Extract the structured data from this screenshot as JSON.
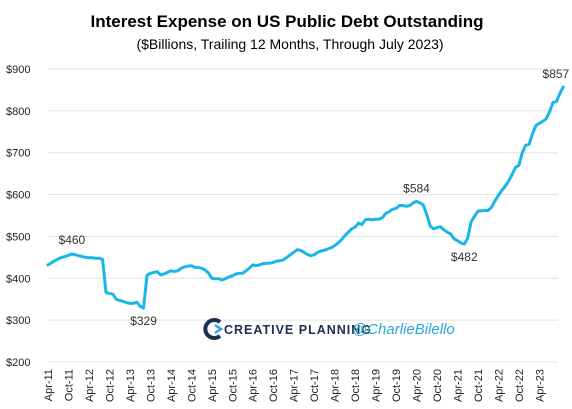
{
  "chart_data": {
    "type": "line",
    "title": "Interest Expense on US Public Debt Outstanding",
    "subtitle": "($Billions, Trailing 12 Months, Through July 2023)",
    "ylim": [
      200,
      900
    ],
    "yticks": [
      200,
      300,
      400,
      500,
      600,
      700,
      800,
      900
    ],
    "ytick_labels": [
      "$200",
      "$300",
      "$400",
      "$500",
      "$600",
      "$700",
      "$800",
      "$900"
    ],
    "xlim": [
      0,
      148
    ],
    "x_ticks": [
      {
        "x": 0,
        "label": "Apr-11"
      },
      {
        "x": 6,
        "label": "Oct-11"
      },
      {
        "x": 12,
        "label": "Apr-12"
      },
      {
        "x": 18,
        "label": "Oct-12"
      },
      {
        "x": 24,
        "label": "Apr-13"
      },
      {
        "x": 30,
        "label": "Oct-13"
      },
      {
        "x": 36,
        "label": "Apr-14"
      },
      {
        "x": 42,
        "label": "Oct-14"
      },
      {
        "x": 48,
        "label": "Apr-15"
      },
      {
        "x": 54,
        "label": "Oct-15"
      },
      {
        "x": 60,
        "label": "Apr-16"
      },
      {
        "x": 66,
        "label": "Oct-16"
      },
      {
        "x": 72,
        "label": "Apr-17"
      },
      {
        "x": 78,
        "label": "Oct-17"
      },
      {
        "x": 84,
        "label": "Apr-18"
      },
      {
        "x": 90,
        "label": "Oct-18"
      },
      {
        "x": 96,
        "label": "Apr-19"
      },
      {
        "x": 102,
        "label": "Oct-19"
      },
      {
        "x": 108,
        "label": "Apr-20"
      },
      {
        "x": 114,
        "label": "Oct-20"
      },
      {
        "x": 120,
        "label": "Apr-21"
      },
      {
        "x": 126,
        "label": "Oct-21"
      },
      {
        "x": 132,
        "label": "Apr-22"
      },
      {
        "x": 138,
        "label": "Oct-22"
      },
      {
        "x": 144,
        "label": "Apr-23"
      }
    ],
    "series": [
      {
        "color": "#1ab6ea",
        "points": [
          [
            0,
            432
          ],
          [
            1,
            437
          ],
          [
            2,
            442
          ],
          [
            3,
            446
          ],
          [
            4,
            450
          ],
          [
            5,
            452
          ],
          [
            6,
            455
          ],
          [
            7,
            458
          ],
          [
            8,
            456
          ],
          [
            9,
            454
          ],
          [
            10,
            452
          ],
          [
            11,
            450
          ],
          [
            12,
            449
          ],
          [
            13,
            449
          ],
          [
            14,
            448
          ],
          [
            15,
            448
          ],
          [
            16,
            445
          ],
          [
            17,
            366
          ],
          [
            18,
            364
          ],
          [
            19,
            362
          ],
          [
            20,
            350
          ],
          [
            21,
            347
          ],
          [
            22,
            345
          ],
          [
            23,
            342
          ],
          [
            24,
            340
          ],
          [
            25,
            340
          ],
          [
            26,
            343
          ],
          [
            27,
            333
          ],
          [
            28,
            329
          ],
          [
            29,
            407
          ],
          [
            30,
            412
          ],
          [
            31,
            414
          ],
          [
            32,
            416
          ],
          [
            33,
            408
          ],
          [
            34,
            410
          ],
          [
            35,
            414
          ],
          [
            36,
            418
          ],
          [
            37,
            416
          ],
          [
            38,
            418
          ],
          [
            39,
            424
          ],
          [
            40,
            427
          ],
          [
            41,
            429
          ],
          [
            42,
            430
          ],
          [
            43,
            426
          ],
          [
            44,
            426
          ],
          [
            45,
            424
          ],
          [
            46,
            420
          ],
          [
            47,
            413
          ],
          [
            48,
            400
          ],
          [
            49,
            399
          ],
          [
            50,
            399
          ],
          [
            51,
            396
          ],
          [
            52,
            399
          ],
          [
            53,
            403
          ],
          [
            54,
            406
          ],
          [
            55,
            410
          ],
          [
            56,
            412
          ],
          [
            57,
            412
          ],
          [
            58,
            418
          ],
          [
            59,
            424
          ],
          [
            60,
            432
          ],
          [
            61,
            430
          ],
          [
            62,
            432
          ],
          [
            63,
            435
          ],
          [
            64,
            436
          ],
          [
            65,
            436
          ],
          [
            66,
            438
          ],
          [
            67,
            441
          ],
          [
            68,
            442
          ],
          [
            69,
            444
          ],
          [
            70,
            450
          ],
          [
            71,
            456
          ],
          [
            72,
            462
          ],
          [
            73,
            468
          ],
          [
            74,
            467
          ],
          [
            75,
            462
          ],
          [
            76,
            457
          ],
          [
            77,
            454
          ],
          [
            78,
            456
          ],
          [
            79,
            462
          ],
          [
            80,
            465
          ],
          [
            81,
            467
          ],
          [
            82,
            470
          ],
          [
            83,
            473
          ],
          [
            84,
            478
          ],
          [
            85,
            484
          ],
          [
            86,
            492
          ],
          [
            87,
            502
          ],
          [
            88,
            510
          ],
          [
            89,
            518
          ],
          [
            90,
            522
          ],
          [
            91,
            532
          ],
          [
            92,
            528
          ],
          [
            93,
            540
          ],
          [
            94,
            541
          ],
          [
            95,
            540
          ],
          [
            96,
            541
          ],
          [
            97,
            541
          ],
          [
            98,
            545
          ],
          [
            99,
            555
          ],
          [
            100,
            559
          ],
          [
            101,
            565
          ],
          [
            102,
            567
          ],
          [
            103,
            574
          ],
          [
            104,
            574
          ],
          [
            105,
            572
          ],
          [
            106,
            574
          ],
          [
            107,
            580
          ],
          [
            108,
            584
          ],
          [
            109,
            580
          ],
          [
            110,
            575
          ],
          [
            111,
            552
          ],
          [
            112,
            525
          ],
          [
            113,
            518
          ],
          [
            114,
            521
          ],
          [
            115,
            523
          ],
          [
            116,
            516
          ],
          [
            117,
            510
          ],
          [
            118,
            506
          ],
          [
            119,
            494
          ],
          [
            120,
            490
          ],
          [
            121,
            484
          ],
          [
            122,
            482
          ],
          [
            123,
            496
          ],
          [
            124,
            535
          ],
          [
            125,
            548
          ],
          [
            126,
            560
          ],
          [
            127,
            561
          ],
          [
            128,
            562
          ],
          [
            129,
            562
          ],
          [
            130,
            570
          ],
          [
            131,
            585
          ],
          [
            132,
            598
          ],
          [
            133,
            610
          ],
          [
            134,
            620
          ],
          [
            135,
            632
          ],
          [
            136,
            648
          ],
          [
            137,
            665
          ],
          [
            138,
            670
          ],
          [
            139,
            700
          ],
          [
            140,
            718
          ],
          [
            141,
            720
          ],
          [
            142,
            745
          ],
          [
            143,
            765
          ],
          [
            144,
            770
          ],
          [
            145,
            775
          ],
          [
            146,
            781
          ],
          [
            147,
            798
          ],
          [
            148,
            820
          ],
          [
            149,
            822
          ],
          [
            150,
            841
          ],
          [
            151,
            857
          ]
        ]
      }
    ],
    "annotations": [
      {
        "x": 7,
        "y": 460,
        "label": "$460",
        "pos": "above"
      },
      {
        "x": 28,
        "y": 329,
        "label": "$329",
        "pos": "below"
      },
      {
        "x": 108,
        "y": 584,
        "label": "$584",
        "pos": "above"
      },
      {
        "x": 122,
        "y": 482,
        "label": "$482",
        "pos": "below"
      },
      {
        "x": 151,
        "y": 857,
        "label": "$857",
        "pos": "above"
      }
    ]
  },
  "branding": {
    "company": "CREATIVE PLANNING",
    "handle": "@CharlieBilello",
    "logo_icon": "creative-planning-logo-icon"
  }
}
